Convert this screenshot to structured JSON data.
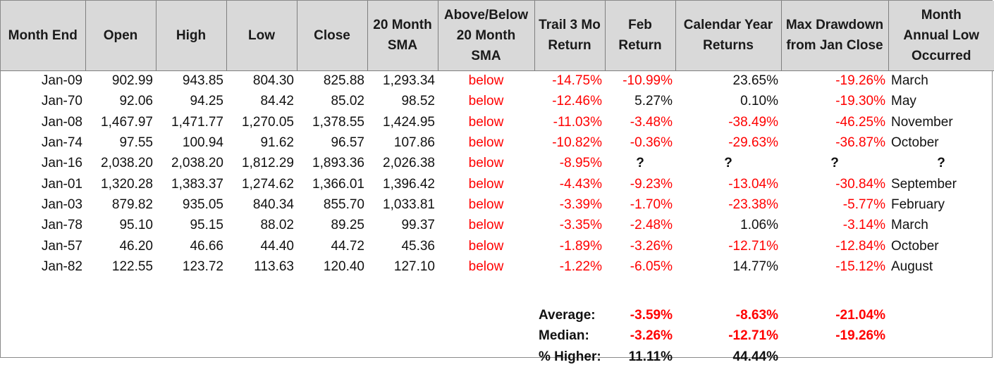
{
  "headers": [
    "Month End",
    "Open",
    "High",
    "Low",
    "Close",
    "20 Month\nSMA",
    "Above/Below\n20 Month\nSMA",
    "Trail 3 Mo\nReturn",
    "Feb\nReturn",
    "Calendar Year\nReturns",
    "Max Drawdown\nfrom Jan Close",
    "Month\nAnnual Low\nOccurred"
  ],
  "rows": [
    {
      "month": "Jan-09",
      "open": "902.99",
      "high": "943.85",
      "low": "804.30",
      "close": "825.88",
      "sma": "1,293.34",
      "position": "below",
      "trail3": "-14.75%",
      "feb": "-10.99%",
      "calyear": "23.65%",
      "maxdd": "-19.26%",
      "lowmonth": "March"
    },
    {
      "month": "Jan-70",
      "open": "92.06",
      "high": "94.25",
      "low": "84.42",
      "close": "85.02",
      "sma": "98.52",
      "position": "below",
      "trail3": "-12.46%",
      "feb": "5.27%",
      "calyear": "0.10%",
      "maxdd": "-19.30%",
      "lowmonth": "May"
    },
    {
      "month": "Jan-08",
      "open": "1,467.97",
      "high": "1,471.77",
      "low": "1,270.05",
      "close": "1,378.55",
      "sma": "1,424.95",
      "position": "below",
      "trail3": "-11.03%",
      "feb": "-3.48%",
      "calyear": "-38.49%",
      "maxdd": "-46.25%",
      "lowmonth": "November"
    },
    {
      "month": "Jan-74",
      "open": "97.55",
      "high": "100.94",
      "low": "91.62",
      "close": "96.57",
      "sma": "107.86",
      "position": "below",
      "trail3": "-10.82%",
      "feb": "-0.36%",
      "calyear": "-29.63%",
      "maxdd": "-36.87%",
      "lowmonth": "October"
    },
    {
      "month": "Jan-16",
      "open": "2,038.20",
      "high": "2,038.20",
      "low": "1,812.29",
      "close": "1,893.36",
      "sma": "2,026.38",
      "position": "below",
      "trail3": "-8.95%",
      "feb": "?",
      "calyear": "?",
      "maxdd": "?",
      "lowmonth": "?"
    },
    {
      "month": "Jan-01",
      "open": "1,320.28",
      "high": "1,383.37",
      "low": "1,274.62",
      "close": "1,366.01",
      "sma": "1,396.42",
      "position": "below",
      "trail3": "-4.43%",
      "feb": "-9.23%",
      "calyear": "-13.04%",
      "maxdd": "-30.84%",
      "lowmonth": "September"
    },
    {
      "month": "Jan-03",
      "open": "879.82",
      "high": "935.05",
      "low": "840.34",
      "close": "855.70",
      "sma": "1,033.81",
      "position": "below",
      "trail3": "-3.39%",
      "feb": "-1.70%",
      "calyear": "-23.38%",
      "maxdd": "-5.77%",
      "lowmonth": "February"
    },
    {
      "month": "Jan-78",
      "open": "95.10",
      "high": "95.15",
      "low": "88.02",
      "close": "89.25",
      "sma": "99.37",
      "position": "below",
      "trail3": "-3.35%",
      "feb": "-2.48%",
      "calyear": "1.06%",
      "maxdd": "-3.14%",
      "lowmonth": "March"
    },
    {
      "month": "Jan-57",
      "open": "46.20",
      "high": "46.66",
      "low": "44.40",
      "close": "44.72",
      "sma": "45.36",
      "position": "below",
      "trail3": "-1.89%",
      "feb": "-3.26%",
      "calyear": "-12.71%",
      "maxdd": "-12.84%",
      "lowmonth": "October"
    },
    {
      "month": "Jan-82",
      "open": "122.55",
      "high": "123.72",
      "low": "113.63",
      "close": "120.40",
      "sma": "127.10",
      "position": "below",
      "trail3": "-1.22%",
      "feb": "-6.05%",
      "calyear": "14.77%",
      "maxdd": "-15.12%",
      "lowmonth": "August"
    }
  ],
  "summary": [
    {
      "label": "Average:",
      "feb": "-3.59%",
      "calyear": "-8.63%",
      "maxdd": "-21.04%"
    },
    {
      "label": "Median:",
      "feb": "-3.26%",
      "calyear": "-12.71%",
      "maxdd": "-19.26%"
    },
    {
      "label": "% Higher:",
      "feb": "11.11%",
      "calyear": "44.44%",
      "maxdd": ""
    }
  ],
  "colors": {
    "header_bg": "#d9d9d9",
    "negative": "#ff0000",
    "text": "#111111"
  }
}
